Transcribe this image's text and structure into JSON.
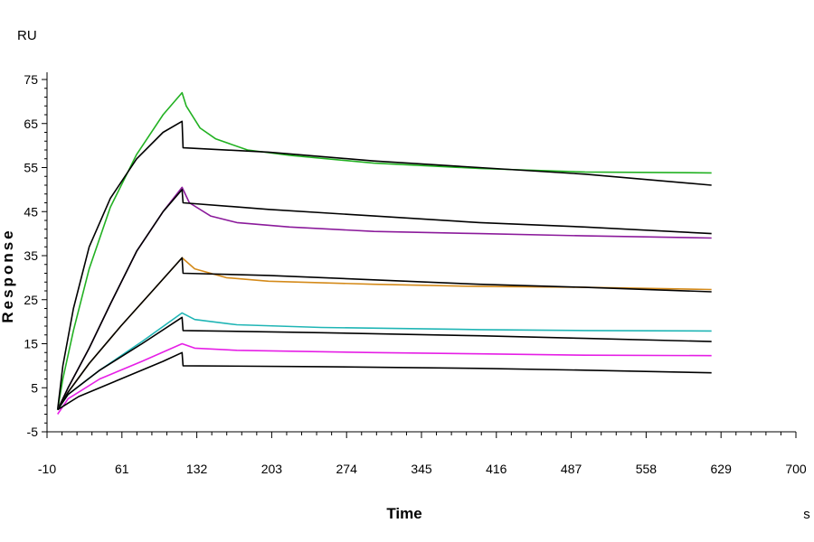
{
  "chart_data": {
    "type": "line",
    "title": "",
    "xlabel": "Time",
    "ylabel": "Response",
    "x_unit": "s",
    "y_unit": "RU",
    "xlim": [
      -10,
      700
    ],
    "ylim": [
      -5,
      75
    ],
    "x_ticks": [
      "-10",
      "61",
      "132",
      "203",
      "274",
      "345",
      "416",
      "487",
      "558",
      "629",
      "700"
    ],
    "y_ticks": [
      "-5",
      "5",
      "15",
      "25",
      "35",
      "45",
      "55",
      "65",
      "75"
    ],
    "grid": false,
    "legend": "none",
    "series": [
      {
        "color": "#22b122",
        "points": [
          [
            0,
            0
          ],
          [
            5,
            7
          ],
          [
            15,
            18
          ],
          [
            30,
            32
          ],
          [
            50,
            46
          ],
          [
            75,
            58
          ],
          [
            100,
            67
          ],
          [
            118,
            72
          ],
          [
            122,
            69
          ],
          [
            135,
            64
          ],
          [
            150,
            61.5
          ],
          [
            180,
            59
          ],
          [
            220,
            57.8
          ],
          [
            300,
            56
          ],
          [
            400,
            54.8
          ],
          [
            500,
            54
          ],
          [
            620,
            53.8
          ]
        ]
      },
      {
        "color": "#000000",
        "points": [
          [
            0,
            0
          ],
          [
            5,
            10
          ],
          [
            15,
            23
          ],
          [
            30,
            37
          ],
          [
            50,
            48
          ],
          [
            75,
            57
          ],
          [
            100,
            63
          ],
          [
            118,
            65.5
          ],
          [
            119,
            59.5
          ],
          [
            200,
            58.5
          ],
          [
            300,
            56.5
          ],
          [
            400,
            55
          ],
          [
            500,
            53.5
          ],
          [
            620,
            51
          ]
        ]
      },
      {
        "color": "#8b1a9b",
        "points": [
          [
            0,
            0
          ],
          [
            10,
            5
          ],
          [
            30,
            14
          ],
          [
            50,
            24
          ],
          [
            75,
            36
          ],
          [
            100,
            45
          ],
          [
            118,
            50.5
          ],
          [
            125,
            47
          ],
          [
            145,
            44
          ],
          [
            170,
            42.5
          ],
          [
            220,
            41.5
          ],
          [
            300,
            40.5
          ],
          [
            400,
            40
          ],
          [
            500,
            39.5
          ],
          [
            620,
            39
          ]
        ]
      },
      {
        "color": "#000000",
        "points": [
          [
            0,
            0
          ],
          [
            10,
            5
          ],
          [
            30,
            14
          ],
          [
            50,
            24
          ],
          [
            75,
            36
          ],
          [
            100,
            45
          ],
          [
            118,
            50
          ],
          [
            119,
            47
          ],
          [
            200,
            45.5
          ],
          [
            300,
            44
          ],
          [
            400,
            42.5
          ],
          [
            500,
            41.5
          ],
          [
            620,
            40
          ]
        ]
      },
      {
        "color": "#d48a1a",
        "points": [
          [
            0,
            0
          ],
          [
            10,
            4
          ],
          [
            30,
            10.5
          ],
          [
            60,
            19
          ],
          [
            90,
            27
          ],
          [
            118,
            34.5
          ],
          [
            130,
            32
          ],
          [
            160,
            30
          ],
          [
            200,
            29.2
          ],
          [
            300,
            28.5
          ],
          [
            400,
            28
          ],
          [
            500,
            27.8
          ],
          [
            620,
            27.3
          ]
        ]
      },
      {
        "color": "#000000",
        "points": [
          [
            0,
            0
          ],
          [
            10,
            4
          ],
          [
            30,
            10.5
          ],
          [
            60,
            19
          ],
          [
            90,
            27
          ],
          [
            118,
            34.5
          ],
          [
            119,
            31
          ],
          [
            200,
            30.5
          ],
          [
            300,
            29.5
          ],
          [
            400,
            28.5
          ],
          [
            500,
            27.8
          ],
          [
            620,
            26.8
          ]
        ]
      },
      {
        "color": "#1fb5b5",
        "points": [
          [
            0,
            0
          ],
          [
            10,
            3.5
          ],
          [
            40,
            9
          ],
          [
            80,
            15.5
          ],
          [
            118,
            22
          ],
          [
            130,
            20.5
          ],
          [
            170,
            19.3
          ],
          [
            250,
            18.7
          ],
          [
            400,
            18.2
          ],
          [
            500,
            18
          ],
          [
            620,
            17.9
          ]
        ]
      },
      {
        "color": "#000000",
        "points": [
          [
            0,
            0
          ],
          [
            10,
            3.5
          ],
          [
            40,
            9
          ],
          [
            80,
            15
          ],
          [
            118,
            21
          ],
          [
            119,
            18
          ],
          [
            250,
            17.5
          ],
          [
            400,
            16.8
          ],
          [
            500,
            16.2
          ],
          [
            620,
            15.5
          ]
        ]
      },
      {
        "color": "#e61ee6",
        "points": [
          [
            0,
            -1
          ],
          [
            10,
            2.5
          ],
          [
            40,
            7
          ],
          [
            80,
            11
          ],
          [
            118,
            15
          ],
          [
            130,
            14
          ],
          [
            170,
            13.5
          ],
          [
            300,
            13
          ],
          [
            400,
            12.7
          ],
          [
            500,
            12.4
          ],
          [
            620,
            12.3
          ]
        ]
      },
      {
        "color": "#000000",
        "points": [
          [
            0,
            0
          ],
          [
            20,
            3
          ],
          [
            60,
            7
          ],
          [
            100,
            11
          ],
          [
            118,
            13
          ],
          [
            119,
            10
          ],
          [
            250,
            9.8
          ],
          [
            400,
            9.4
          ],
          [
            500,
            9
          ],
          [
            620,
            8.4
          ]
        ]
      }
    ]
  }
}
